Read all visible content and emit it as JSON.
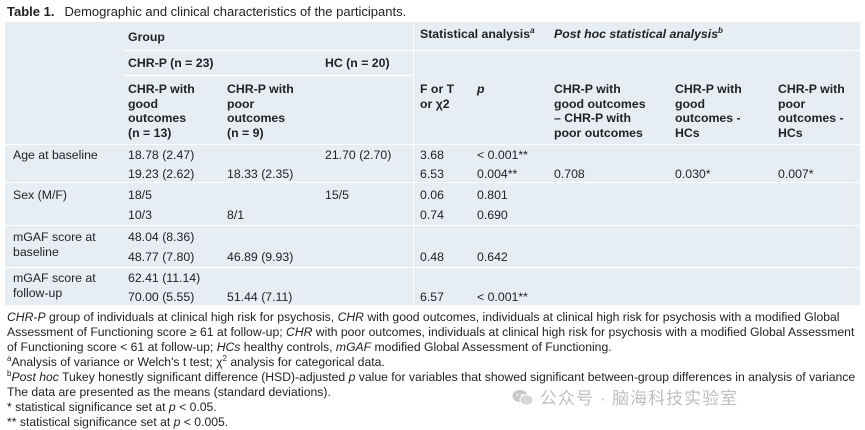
{
  "caption": {
    "label": "Table 1.",
    "title": "Demographic and clinical characteristics of the participants."
  },
  "header": {
    "group": "Group",
    "chrp": "CHR-P (n = 23)",
    "hc": "HC (n = 20)",
    "statistical": "Statistical analysis",
    "statistical_sup": "a",
    "posthoc": "Post hoc statistical analysis",
    "posthoc_sup": "b",
    "good_l1": "CHR-P with",
    "good_l2": "good",
    "good_l3": "outcomes",
    "good_l4": "(n = 13)",
    "poor_l1": "CHR-P with",
    "poor_l2": "poor",
    "poor_l3": "outcomes",
    "poor_l4": "(n = 9)",
    "fort_l1": "F or T",
    "fort_l2": "or χ2",
    "p": "p",
    "ph1_l1": "CHR-P with",
    "ph1_l2": "good outcomes",
    "ph1_l3": "– CHR-P with",
    "ph1_l4": "poor outcomes",
    "ph2_l1": "CHR-P with",
    "ph2_l2": "good",
    "ph2_l3": "outcomes -",
    "ph2_l4": "HCs",
    "ph3_l1": "CHR-P with",
    "ph3_l2": "poor",
    "ph3_l3": "outcomes -",
    "ph3_l4": "HCs"
  },
  "rows": {
    "age_label": "Age at baseline",
    "age_a_good": "18.78 (2.47)",
    "age_a_hc": "21.70 (2.70)",
    "age_a_f": "3.68",
    "age_a_p": "< 0.001**",
    "age_b_good": "19.23 (2.62)",
    "age_b_poor": "18.33 (2.35)",
    "age_b_f": "6.53",
    "age_b_p": "0.004**",
    "age_b_ph1": "0.708",
    "age_b_ph2": "0.030*",
    "age_b_ph3": "0.007*",
    "sex_label": "Sex (M/F)",
    "sex_a_good": "18/5",
    "sex_a_hc": "15/5",
    "sex_a_f": "0.06",
    "sex_a_p": "0.801",
    "sex_b_good": "10/3",
    "sex_b_poor": "8/1",
    "sex_b_f": "0.74",
    "sex_b_p": "0.690",
    "mb_label_l1": "mGAF score at",
    "mb_label_l2": "baseline",
    "mb_a_good": "48.04 (8.36)",
    "mb_b_good": "48.77 (7.80)",
    "mb_b_poor": "46.89 (9.93)",
    "mb_b_f": "0.48",
    "mb_b_p": "0.642",
    "mf_label_l1": "mGAF score at",
    "mf_label_l2": "follow-up",
    "mf_a_good": "62.41 (11.14)",
    "mf_b_good": "70.00 (5.55)",
    "mf_b_poor": "51.44 (7.11)",
    "mf_b_f": "6.57",
    "mf_b_p": "< 0.001**"
  },
  "notes": {
    "n1a": "CHR-P",
    "n1b": " group of individuals at clinical high risk for psychosis, ",
    "n1c": "CHR",
    "n1d": " with good outcomes, individuals at clinical high risk for psychosis with a modified Global",
    "n2": "Assessment of Functioning score ≥ 61 at follow-up; ",
    "n2b": "CHR",
    "n2c": " with poor outcomes, individuals at clinical high risk for psychosis with a modified Global Assessment",
    "n3a": "of Functioning score < 61 at follow-up; ",
    "n3b": "HCs",
    "n3c": " healthy controls, ",
    "n3d": "mGAF",
    "n3e": " modified Global Assessment of Functioning.",
    "n4sup": "a",
    "n4": "Analysis of variance or Welch's t test; χ",
    "n4sup2": "2",
    "n4b": " analysis for categorical data.",
    "n5sup": "b",
    "n5a": "Post hoc",
    "n5b": " Tukey honestly significant difference (HSD)-adjusted ",
    "n5c": "p",
    "n5d": " value for variables that showed significant between-group differences in analysis of variance",
    "n6": "The data are presented as the means (standard deviations).",
    "n7a": "* statistical significance set at ",
    "n7b": "p",
    "n7c": " < 0.05.",
    "n8a": "** statistical significance set at ",
    "n8b": "p",
    "n8c": " < 0.005."
  },
  "watermark": "公众号 · 脑海科技实验室"
}
